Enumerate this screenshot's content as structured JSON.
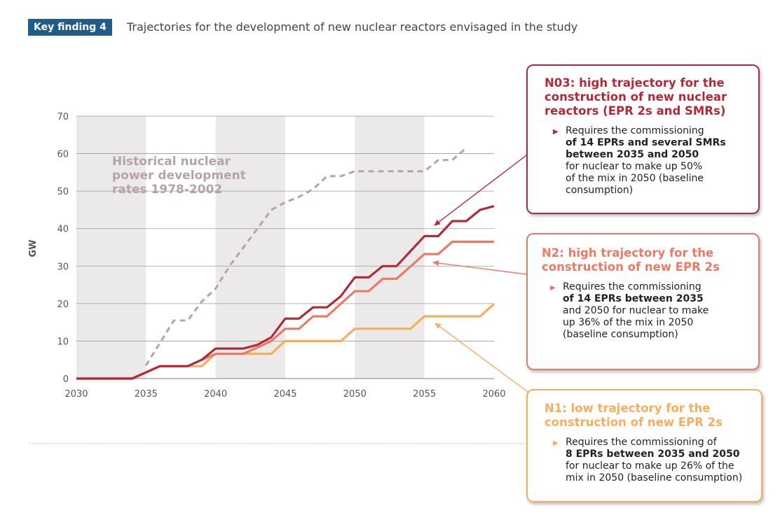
{
  "header": {
    "badge": "Key finding 4",
    "title": "Trajectories for the development of new nuclear reactors envisaged in the study"
  },
  "colors": {
    "n03": "#b22a36",
    "n2": "#ea7a66",
    "n1": "#f6ad5c",
    "historical": "#b5a3a8",
    "band": "#ece9ea",
    "grid": "#9a9a9a",
    "badge": "#1f5c8c"
  },
  "chart_data": {
    "type": "line",
    "ylabel": "GW",
    "xlim": [
      2030,
      2060
    ],
    "ylim": [
      0,
      70
    ],
    "xticks": [
      2030,
      2035,
      2040,
      2045,
      2050,
      2055,
      2060
    ],
    "yticks": [
      0,
      10,
      20,
      30,
      40,
      50,
      60,
      70
    ],
    "shaded_bands": [
      [
        2030,
        2035
      ],
      [
        2040,
        2045
      ],
      [
        2050,
        2055
      ]
    ],
    "annotation": "Historical nuclear power development rates 1978-2002",
    "series": [
      {
        "key": "historical",
        "style": "dashed",
        "x": [
          2035,
          2036,
          2037,
          2038,
          2039,
          2040,
          2041,
          2042,
          2043,
          2044,
          2045,
          2046,
          2047,
          2048,
          2049,
          2050,
          2051,
          2052,
          2053,
          2054,
          2055,
          2056,
          2057,
          2058
        ],
        "y": [
          3.5,
          9.5,
          15.5,
          15.5,
          20.5,
          24,
          30,
          35,
          40,
          45,
          47,
          48.5,
          50.5,
          54,
          54,
          55.3,
          55.3,
          55.3,
          55.3,
          55.3,
          55.3,
          58.3,
          58.3,
          61.5
        ]
      },
      {
        "key": "n03",
        "style": "step",
        "x": [
          2030,
          2034,
          2036,
          2038,
          2039,
          2040,
          2042,
          2043,
          2044,
          2045,
          2046,
          2047,
          2048,
          2049,
          2050,
          2051,
          2052,
          2053,
          2054,
          2055,
          2056,
          2057,
          2058,
          2059,
          2060
        ],
        "y": [
          0,
          0,
          3.3,
          3.3,
          5,
          8,
          8,
          9,
          11,
          16,
          16,
          19,
          19,
          22,
          27,
          27,
          30,
          30,
          34,
          38,
          38,
          42,
          42,
          45,
          46
        ]
      },
      {
        "key": "n2",
        "style": "step",
        "x": [
          2030,
          2034,
          2036,
          2038,
          2040,
          2042,
          2043,
          2044,
          2045,
          2046,
          2047,
          2048,
          2049,
          2050,
          2051,
          2052,
          2053,
          2054,
          2055,
          2056,
          2057,
          2058,
          2059,
          2060
        ],
        "y": [
          0,
          0,
          3.3,
          3.3,
          6.6,
          6.6,
          8.3,
          10,
          13.3,
          13.3,
          16.6,
          16.6,
          20,
          23.3,
          23.3,
          26.6,
          26.6,
          29.9,
          33.2,
          33.2,
          36.5,
          36.5,
          36.5,
          36.5
        ]
      },
      {
        "key": "n1",
        "style": "step",
        "x": [
          2030,
          2034,
          2036,
          2037,
          2039,
          2040,
          2044,
          2045,
          2049,
          2050,
          2054,
          2055,
          2059,
          2060
        ],
        "y": [
          0,
          0,
          3.3,
          3.3,
          3.3,
          6.6,
          6.6,
          10,
          10,
          13.3,
          13.3,
          16.6,
          16.6,
          19.9
        ]
      }
    ]
  },
  "callouts": {
    "n03": {
      "title": "N03: high trajectory for the construction of new nuclear reactors (EPR 2s and SMRs)",
      "lines": [
        "Requires the commissioning",
        "of 14 EPRs and several SMRs",
        "between 2035 and 2050",
        "for nuclear to make up 50%",
        "of the mix in 2050 (baseline",
        "consumption)"
      ]
    },
    "n2": {
      "title": "N2: high trajectory for the construction of new EPR 2s",
      "lines": [
        "Requires the commissioning",
        "of 14 EPRs between 2035",
        "and 2050 for nuclear to make",
        "up 36% of the mix in 2050",
        "(baseline consumption)"
      ]
    },
    "n1": {
      "title": "N1: low trajectory for the construction of new EPR 2s",
      "lines": [
        "Requires the commissioning of",
        "8 EPRs between 2035 and 2050",
        "for nuclear to make up 26% of the",
        "mix in 2050 (baseline consumption)"
      ]
    }
  }
}
